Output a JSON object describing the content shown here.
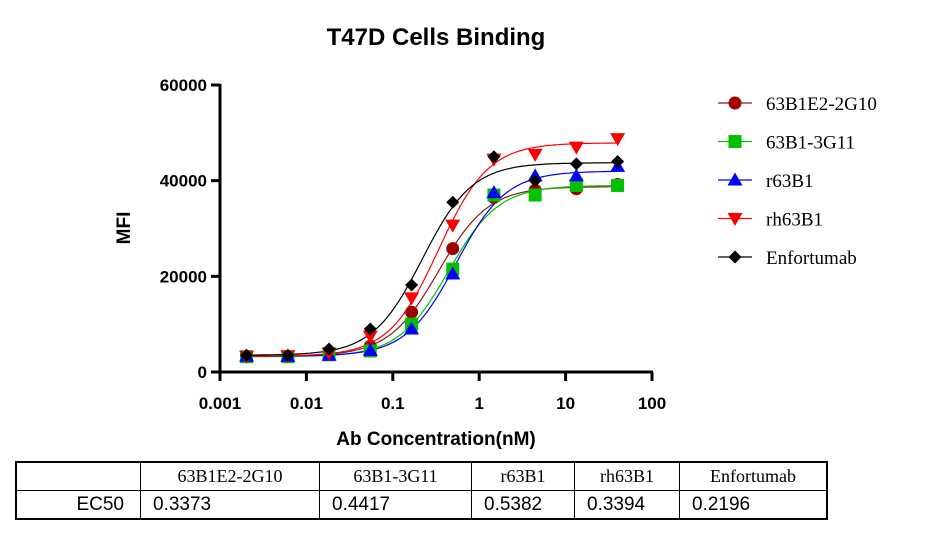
{
  "chart_data": {
    "type": "scatter",
    "title": "T47D Cells Binding",
    "xlabel": "Ab Concentration(nM)",
    "ylabel": "MFI",
    "xscale": "log",
    "xlim": [
      0.001,
      100
    ],
    "ylim": [
      0,
      60000
    ],
    "xticks": [
      "0.001",
      "0.01",
      "0.1",
      "1",
      "10",
      "100"
    ],
    "yticks": [
      "0",
      "20000",
      "40000",
      "60000"
    ],
    "grid": false,
    "legend_position": "right",
    "x": [
      0.00203,
      0.0061,
      0.0183,
      0.0549,
      0.165,
      0.494,
      1.48,
      4.44,
      13.33,
      40
    ],
    "series": [
      {
        "name": "63B1E2-2G10",
        "marker": "circle",
        "color": "#a00000",
        "line_color": "#8b1a1a",
        "values": [
          3300,
          3300,
          3700,
          5400,
          12500,
          25800,
          36500,
          38000,
          38300,
          39200
        ]
      },
      {
        "name": "63B1-3G11",
        "marker": "square",
        "color": "#00c000",
        "line_color": "#00c000",
        "values": [
          3200,
          3200,
          3600,
          4400,
          10000,
          21500,
          37000,
          37000,
          39000,
          39000
        ]
      },
      {
        "name": "r63B1",
        "marker": "triangle-up",
        "color": "#0000ff",
        "line_color": "#0000ff",
        "values": [
          3300,
          3300,
          3500,
          4500,
          9000,
          20500,
          37500,
          41000,
          41000,
          43000
        ]
      },
      {
        "name": "rh63B1",
        "marker": "triangle-down",
        "color": "#ff0000",
        "line_color": "#ff0000",
        "values": [
          3300,
          3400,
          4000,
          7500,
          15500,
          30700,
          44500,
          45500,
          47000,
          48800
        ]
      },
      {
        "name": "Enfortumab",
        "marker": "diamond",
        "color": "#000000",
        "line_color": "#000000",
        "values": [
          3500,
          3500,
          4800,
          9000,
          18200,
          35500,
          45000,
          40000,
          43500,
          44000
        ]
      }
    ]
  },
  "table": {
    "row_label": "EC50",
    "headers": [
      "63B1E2-2G10",
      "63B1-3G11",
      "r63B1",
      "rh63B1",
      "Enfortumab"
    ],
    "values": [
      "0.3373",
      "0.4417",
      "0.5382",
      "0.3394",
      "0.2196"
    ]
  }
}
